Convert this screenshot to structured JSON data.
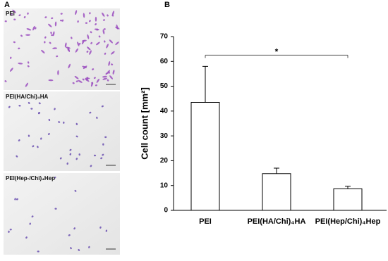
{
  "panels": {
    "a_label": "A",
    "b_label": "B",
    "images": [
      {
        "caption": "PEI"
      },
      {
        "caption": "PEI(HA/Chi)₄HA"
      },
      {
        "caption": "PEI(Hep-/Chi)₄Hep"
      }
    ]
  },
  "chart_data": {
    "type": "bar",
    "y_label": "Cell count [mm²]",
    "categories": [
      "PEI",
      "PEI(HA/Chi)₄HA",
      "PEI(Hep/Chi)₄Hep"
    ],
    "values": [
      43.5,
      14.8,
      8.7
    ],
    "errors": [
      14.5,
      2.2,
      1.0
    ],
    "color": "#ffffff",
    "ylim": [
      0,
      70
    ],
    "yticks": [
      0,
      10,
      20,
      30,
      40,
      50,
      60,
      70
    ],
    "annotation": "*"
  }
}
